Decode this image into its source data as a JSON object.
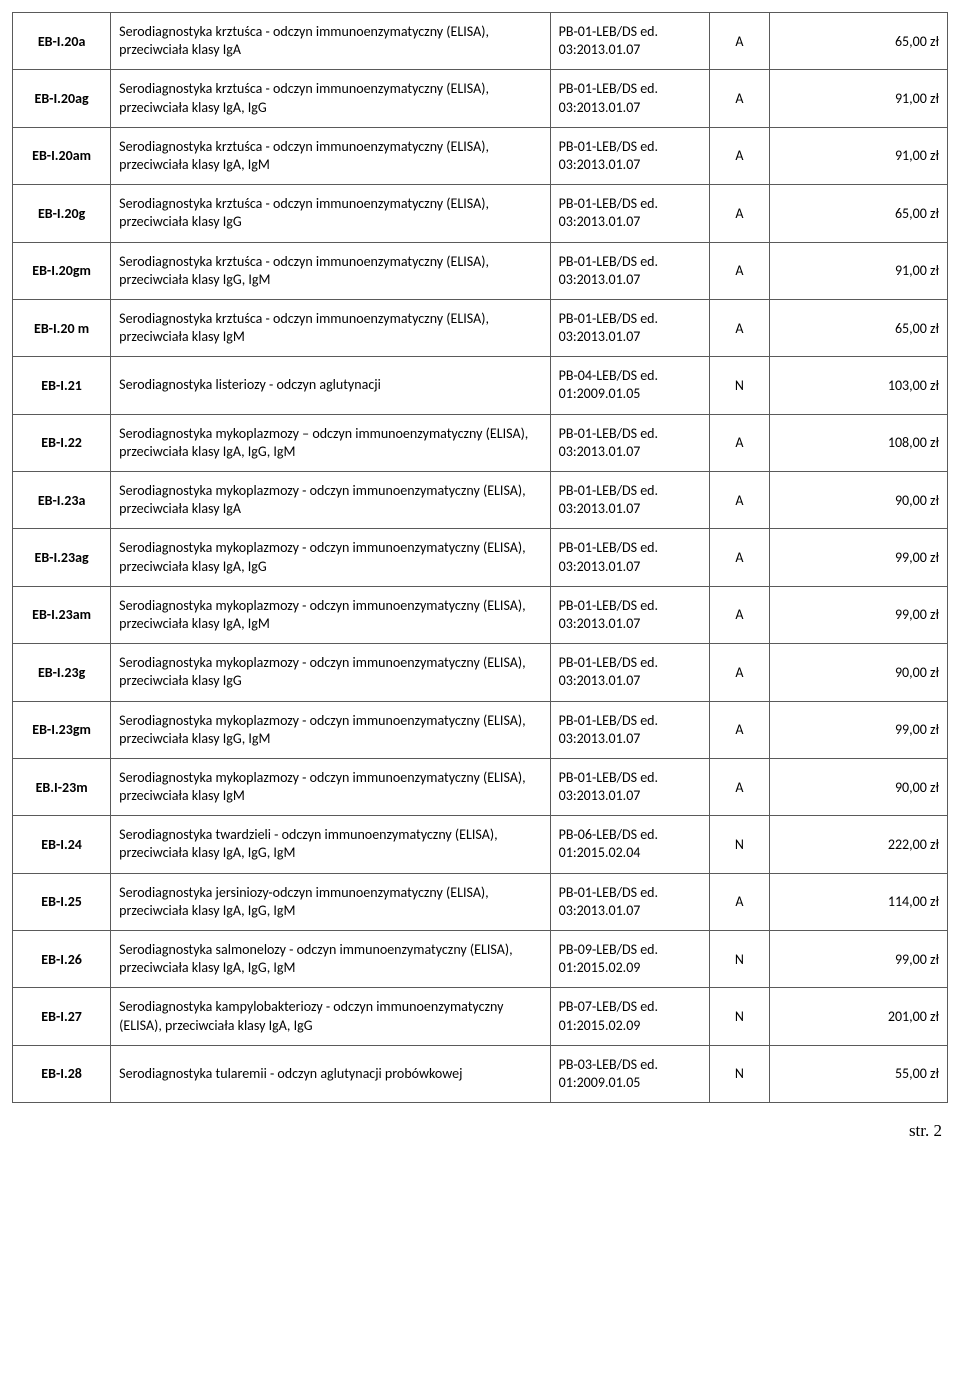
{
  "page_label": "str. 2",
  "table": {
    "columns": [
      "code",
      "description",
      "reference",
      "flag",
      "price"
    ],
    "col_classes": [
      "col-code",
      "col-desc",
      "col-ref",
      "col-flag",
      "col-price"
    ],
    "rows": [
      {
        "code": "EB-I.20a",
        "description": "Serodiagnostyka krztuśca - odczyn immunoenzymatyczny (ELISA), przeciwciała klasy IgA",
        "reference": "PB-01-LEB/DS ed. 03:2013.01.07",
        "flag": "A",
        "price": "65,00 zł"
      },
      {
        "code": "EB-I.20ag",
        "description": "Serodiagnostyka krztuśca - odczyn immunoenzymatyczny (ELISA), przeciwciała klasy IgA, IgG",
        "reference": "PB-01-LEB/DS ed. 03:2013.01.07",
        "flag": "A",
        "price": "91,00 zł"
      },
      {
        "code": "EB-I.20am",
        "description": "Serodiagnostyka krztuśca - odczyn immunoenzymatyczny (ELISA), przeciwciała klasy IgA, IgM",
        "reference": "PB-01-LEB/DS ed. 03:2013.01.07",
        "flag": "A",
        "price": "91,00 zł"
      },
      {
        "code": "EB-I.20g",
        "description": "Serodiagnostyka krztuśca - odczyn immunoenzymatyczny (ELISA), przeciwciała klasy IgG",
        "reference": "PB-01-LEB/DS ed. 03:2013.01.07",
        "flag": "A",
        "price": "65,00 zł"
      },
      {
        "code": "EB-I.20gm",
        "description": "Serodiagnostyka krztuśca - odczyn immunoenzymatyczny (ELISA), przeciwciała klasy IgG, IgM",
        "reference": "PB-01-LEB/DS ed. 03:2013.01.07",
        "flag": "A",
        "price": "91,00 zł"
      },
      {
        "code": "EB-I.20 m",
        "description": "Serodiagnostyka krztuśca - odczyn immunoenzymatyczny (ELISA), przeciwciała klasy IgM",
        "reference": "PB-01-LEB/DS ed. 03:2013.01.07",
        "flag": "A",
        "price": "65,00 zł"
      },
      {
        "code": "EB-I.21",
        "description": "Serodiagnostyka listeriozy - odczyn aglutynacji",
        "reference": "PB-04-LEB/DS ed. 01:2009.01.05",
        "flag": "N",
        "price": "103,00 zł"
      },
      {
        "code": "EB-I.22",
        "description": "Serodiagnostyka mykoplazmozy – odczyn immunoenzymatyczny (ELISA), przeciwciała klasy IgA, IgG, IgM",
        "reference": "PB-01-LEB/DS ed. 03:2013.01.07",
        "flag": "A",
        "price": "108,00 zł"
      },
      {
        "code": "EB-I.23a",
        "description": "Serodiagnostyka mykoplazmozy - odczyn immunoenzymatyczny (ELISA), przeciwciała klasy IgA",
        "reference": "PB-01-LEB/DS ed. 03:2013.01.07",
        "flag": "A",
        "price": "90,00 zł"
      },
      {
        "code": "EB-I.23ag",
        "description": "Serodiagnostyka mykoplazmozy - odczyn immunoenzymatyczny (ELISA), przeciwciała klasy IgA, IgG",
        "reference": "PB-01-LEB/DS ed. 03:2013.01.07",
        "flag": "A",
        "price": "99,00 zł"
      },
      {
        "code": "EB-I.23am",
        "description": "Serodiagnostyka mykoplazmozy - odczyn immunoenzymatyczny (ELISA), przeciwciała klasy IgA, IgM",
        "reference": "PB-01-LEB/DS ed. 03:2013.01.07",
        "flag": "A",
        "price": "99,00 zł"
      },
      {
        "code": "EB-I.23g",
        "description": "Serodiagnostyka mykoplazmozy - odczyn immunoenzymatyczny (ELISA), przeciwciała klasy IgG",
        "reference": "PB-01-LEB/DS ed. 03:2013.01.07",
        "flag": "A",
        "price": "90,00 zł"
      },
      {
        "code": "EB-I.23gm",
        "description": "Serodiagnostyka mykoplazmozy - odczyn immunoenzymatyczny (ELISA), przeciwciała klasy IgG, IgM",
        "reference": "PB-01-LEB/DS ed. 03:2013.01.07",
        "flag": "A",
        "price": "99,00 zł"
      },
      {
        "code": "EB.I-23m",
        "description": "Serodiagnostyka mykoplazmozy - odczyn immunoenzymatyczny (ELISA), przeciwciała klasy IgM",
        "reference": "PB-01-LEB/DS ed. 03:2013.01.07",
        "flag": "A",
        "price": "90,00 zł"
      },
      {
        "code": "EB-I.24",
        "description": "Serodiagnostyka twardzieli - odczyn immunoenzymatyczny (ELISA), przeciwciała klasy IgA, IgG, IgM",
        "reference": "PB-06-LEB/DS ed. 01:2015.02.04",
        "flag": "N",
        "price": "222,00 zł"
      },
      {
        "code": "EB-I.25",
        "description": "Serodiagnostyka jersiniozy-odczyn immunoenzymatyczny (ELISA), przeciwciała klasy IgA, IgG, IgM",
        "reference": "PB-01-LEB/DS ed. 03:2013.01.07",
        "flag": "A",
        "price": "114,00 zł"
      },
      {
        "code": "EB-I.26",
        "description": "Serodiagnostyka salmonelozy - odczyn immunoenzymatyczny (ELISA), przeciwciała klasy IgA, IgG, IgM",
        "reference": "PB-09-LEB/DS ed. 01:2015.02.09",
        "flag": "N",
        "price": "99,00 zł"
      },
      {
        "code": "EB-I.27",
        "description": "Serodiagnostyka kampylobakteriozy - odczyn immunoenzymatyczny (ELISA), przeciwciała klasy IgA, IgG",
        "reference": "PB-07-LEB/DS ed. 01:2015.02.09",
        "flag": "N",
        "price": "201,00 zł"
      },
      {
        "code": "EB-I.28",
        "description": "Serodiagnostyka tularemii - odczyn aglutynacji probówkowej",
        "reference": "PB-03-LEB/DS ed. 01:2009.01.05",
        "flag": "N",
        "price": "55,00 zł"
      }
    ]
  }
}
